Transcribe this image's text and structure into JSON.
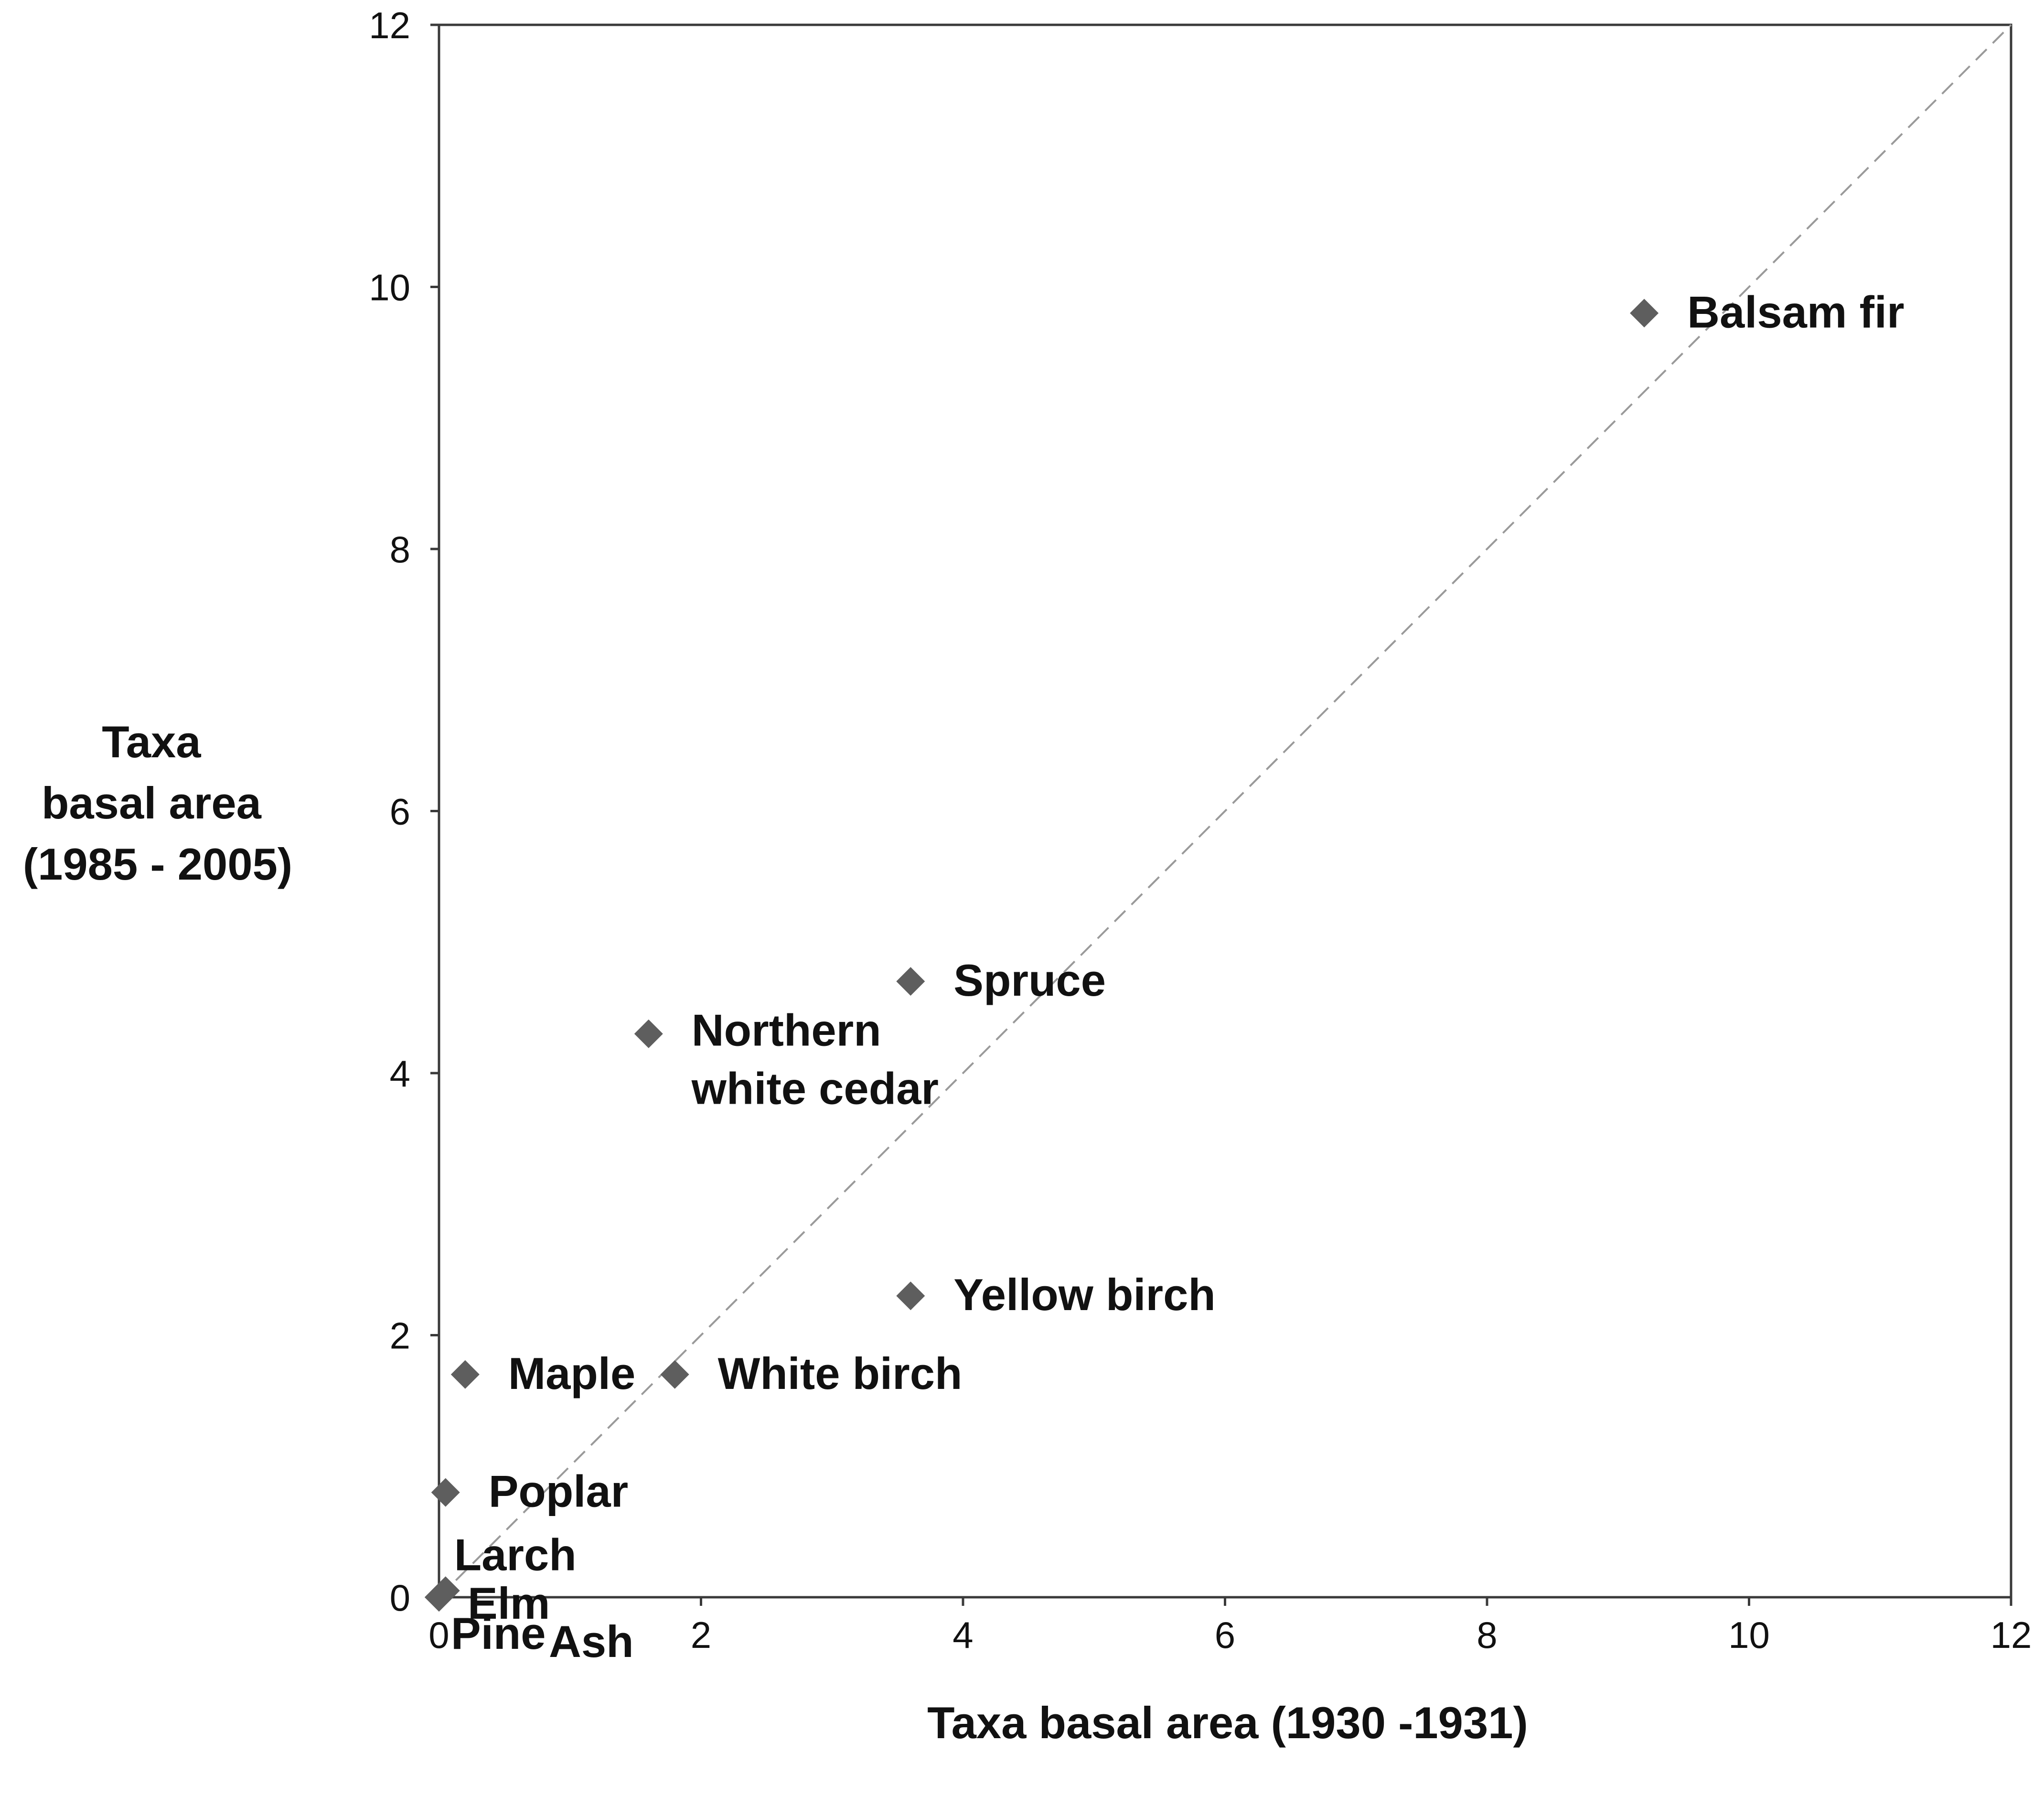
{
  "chart_data": {
    "type": "scatter",
    "title": "",
    "xlabel": "Taxa basal area (1930 -1931)",
    "ylabel_lines": [
      "Taxa",
      "basal area",
      "(1985 - 2005)"
    ],
    "xlim": [
      0,
      12
    ],
    "ylim": [
      0,
      12
    ],
    "xticks": [
      "0",
      "2",
      "4",
      "6",
      "8",
      "10",
      "12"
    ],
    "yticks": [
      "0",
      "2",
      "4",
      "6",
      "8",
      "10",
      "12"
    ],
    "grid": false,
    "legend": "none",
    "reference_line": {
      "style": "dashed",
      "from": [
        0,
        0
      ],
      "to": [
        12,
        12
      ],
      "color": "#9a9a9a"
    },
    "marker": {
      "shape": "diamond",
      "color": "#5e5e5e"
    },
    "points": [
      {
        "label": [
          "Balsam fir"
        ],
        "x": 9.2,
        "y": 9.8
      },
      {
        "label": [
          "Spruce"
        ],
        "x": 3.6,
        "y": 4.7
      },
      {
        "label": [
          "Northern",
          "white cedar"
        ],
        "x": 1.6,
        "y": 4.3
      },
      {
        "label": [
          "Yellow birch"
        ],
        "x": 3.6,
        "y": 2.3
      },
      {
        "label": [
          "White birch"
        ],
        "x": 1.8,
        "y": 1.7
      },
      {
        "label": [
          "Maple"
        ],
        "x": 0.2,
        "y": 1.7
      },
      {
        "label": [
          "Poplar"
        ],
        "x": 0.05,
        "y": 0.8
      },
      {
        "label": [
          "Larch"
        ],
        "x": 0.05,
        "y": 0.05
      },
      {
        "label": [
          "Elm"
        ],
        "x": 0.0,
        "y": 0.0
      },
      {
        "label": [
          "Pine"
        ],
        "x": 0.0,
        "y": 0.0
      },
      {
        "label": [
          "Ash"
        ],
        "x": 0.0,
        "y": 0.0
      }
    ]
  }
}
